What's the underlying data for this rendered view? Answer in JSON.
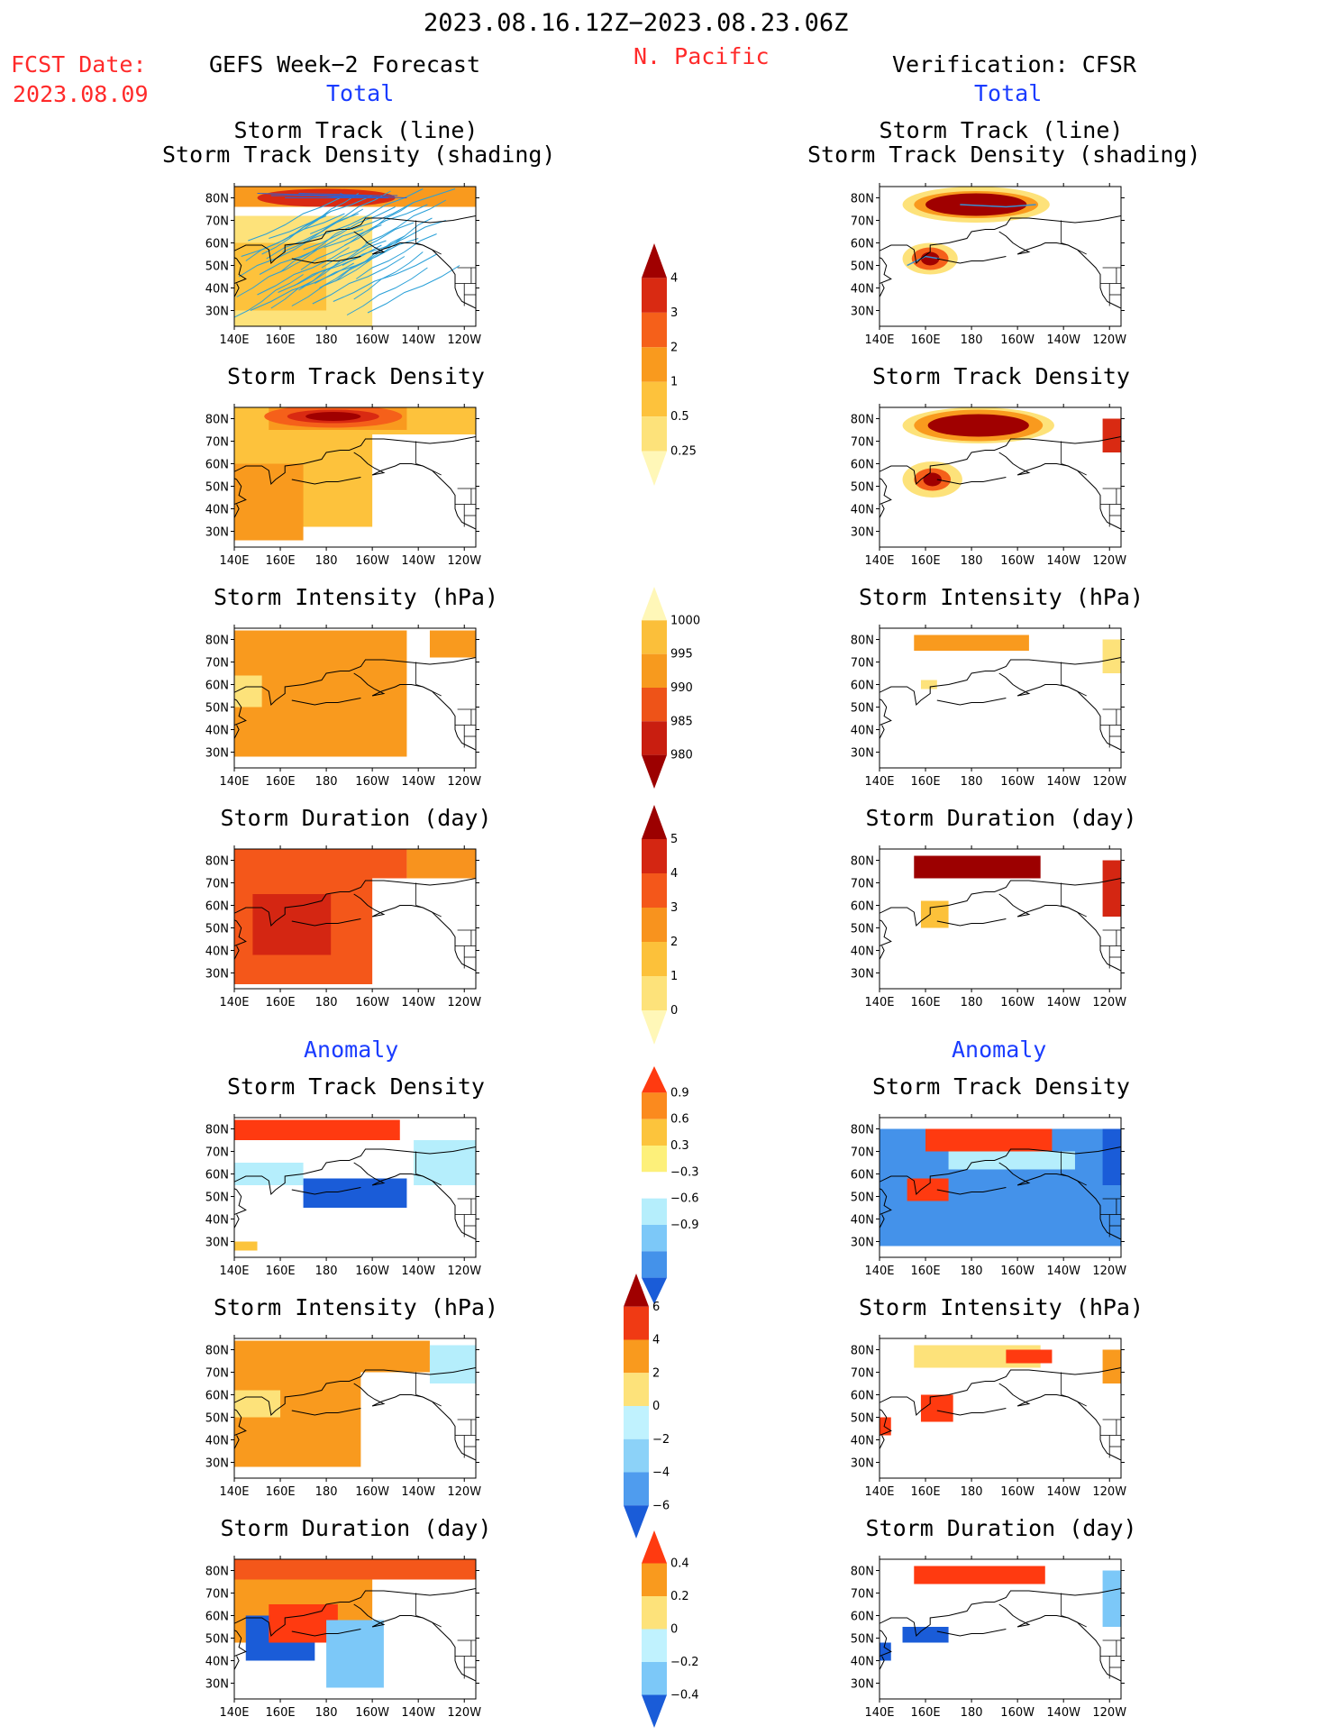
{
  "header": {
    "date_range": "2023.08.16.12Z−2023.08.23.06Z",
    "region": "N. Pacific",
    "fcst_label": "FCST Date:",
    "fcst_date": "2023.08.09",
    "left_title": "GEFS Week−2 Forecast",
    "right_title": "Verification: CFSR",
    "left_section_total": "Total",
    "right_section_total": "Total",
    "left_section_anom": "Anomaly",
    "right_section_anom": "Anomaly"
  },
  "panel_titles": {
    "track_line": "Storm Track (line)",
    "track_shading": "Storm Track Density (shading)",
    "density": "Storm Track Density",
    "intensity": "Storm Intensity (hPa)",
    "duration": "Storm Duration (day)"
  },
  "axes": {
    "lat_labels": [
      "80N",
      "70N",
      "60N",
      "50N",
      "40N",
      "30N"
    ],
    "lon_labels": [
      "140E",
      "160E",
      "180",
      "160W",
      "140W",
      "120W"
    ]
  },
  "colorbars": {
    "density": {
      "labels": [
        "4",
        "3",
        "2",
        "1",
        "0.5",
        "0.25"
      ],
      "colors": [
        "#a00000",
        "#d92a12",
        "#f5601a",
        "#f99a1e",
        "#fdc23c",
        "#fde27a",
        "#fff7b8"
      ]
    },
    "intensity": {
      "labels": [
        "1000",
        "995",
        "990",
        "985",
        "980"
      ],
      "colors": [
        "#fff7b8",
        "#fbbf3a",
        "#f79a1e",
        "#ee5318",
        "#c91e10",
        "#9c0000"
      ]
    },
    "duration": {
      "labels": [
        "5",
        "4",
        "3",
        "2",
        "1",
        "0"
      ],
      "colors": [
        "#9c0000",
        "#d42612",
        "#f4571a",
        "#f8931e",
        "#fcc13a",
        "#fde27a",
        "#fff7b8"
      ]
    },
    "density_anom": {
      "labels": [
        "0.9",
        "0.6",
        "0.3",
        "−0.3",
        "−0.6",
        "−0.9"
      ],
      "colors": [
        "#ff3a10",
        "#fb8a1e",
        "#fcc43c",
        "#fdf07a",
        "#ffffff",
        "#b5eefc",
        "#7cc8f8",
        "#4492ea",
        "#1a5cd8"
      ]
    },
    "intensity_anom": {
      "labels": [
        "6",
        "4",
        "2",
        "0",
        "−2",
        "−4",
        "−6"
      ],
      "colors": [
        "#a00000",
        "#f03a14",
        "#f99a1e",
        "#fde27a",
        "#c0f2fe",
        "#8cd2f8",
        "#4f9cee",
        "#1a5cd8"
      ]
    },
    "duration_anom": {
      "labels": [
        "0.4",
        "0.2",
        "0",
        "−0.2",
        "−0.4"
      ],
      "colors": [
        "#ff3a10",
        "#f99a1e",
        "#fde27a",
        "#c0f2fe",
        "#7cc8f8",
        "#1a5cd8"
      ]
    }
  },
  "colors": {
    "red_text": "#ff2a2a",
    "blue_text": "#1a3cff",
    "track_line": "#2aa0d8"
  }
}
